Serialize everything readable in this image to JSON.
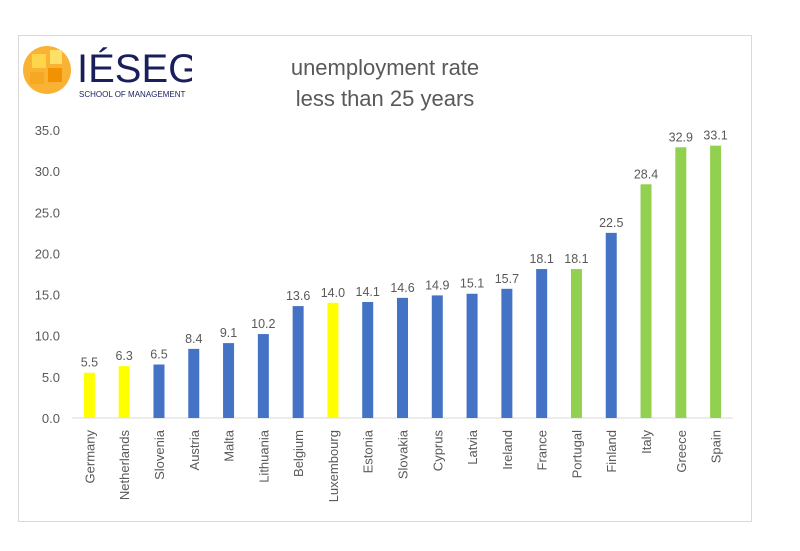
{
  "logo": {
    "text": "IÉSEG",
    "subtext": "SCHOOL OF MANAGEMENT"
  },
  "chart_data": {
    "type": "bar",
    "title": [
      "unemployment rate",
      "less than 25 years"
    ],
    "categories": [
      "Germany",
      "Netherlands",
      "Slovenia",
      "Austria",
      "Malta",
      "Lithuania",
      "Belgium",
      "Luxembourg",
      "Estonia",
      "Slovakia",
      "Cyprus",
      "Latvia",
      "Ireland",
      "France",
      "Portugal",
      "Finland",
      "Italy",
      "Greece",
      "Spain"
    ],
    "values": [
      5.5,
      6.3,
      6.5,
      8.4,
      9.1,
      10.2,
      13.6,
      14.0,
      14.1,
      14.6,
      14.9,
      15.1,
      15.7,
      18.1,
      18.1,
      22.5,
      28.4,
      32.9,
      33.1
    ],
    "bar_colors": [
      "#FFFF00",
      "#FFFF00",
      "#4472C4",
      "#4472C4",
      "#4472C4",
      "#4472C4",
      "#4472C4",
      "#FFFF00",
      "#4472C4",
      "#4472C4",
      "#4472C4",
      "#4472C4",
      "#4472C4",
      "#4472C4",
      "#92D050",
      "#4472C4",
      "#92D050",
      "#92D050",
      "#92D050"
    ],
    "ylim": [
      0,
      35
    ],
    "yticks": [
      "0.0",
      "5.0",
      "10.0",
      "15.0",
      "20.0",
      "25.0",
      "30.0",
      "35.0"
    ],
    "grid": false,
    "xlabel": "",
    "ylabel": ""
  }
}
